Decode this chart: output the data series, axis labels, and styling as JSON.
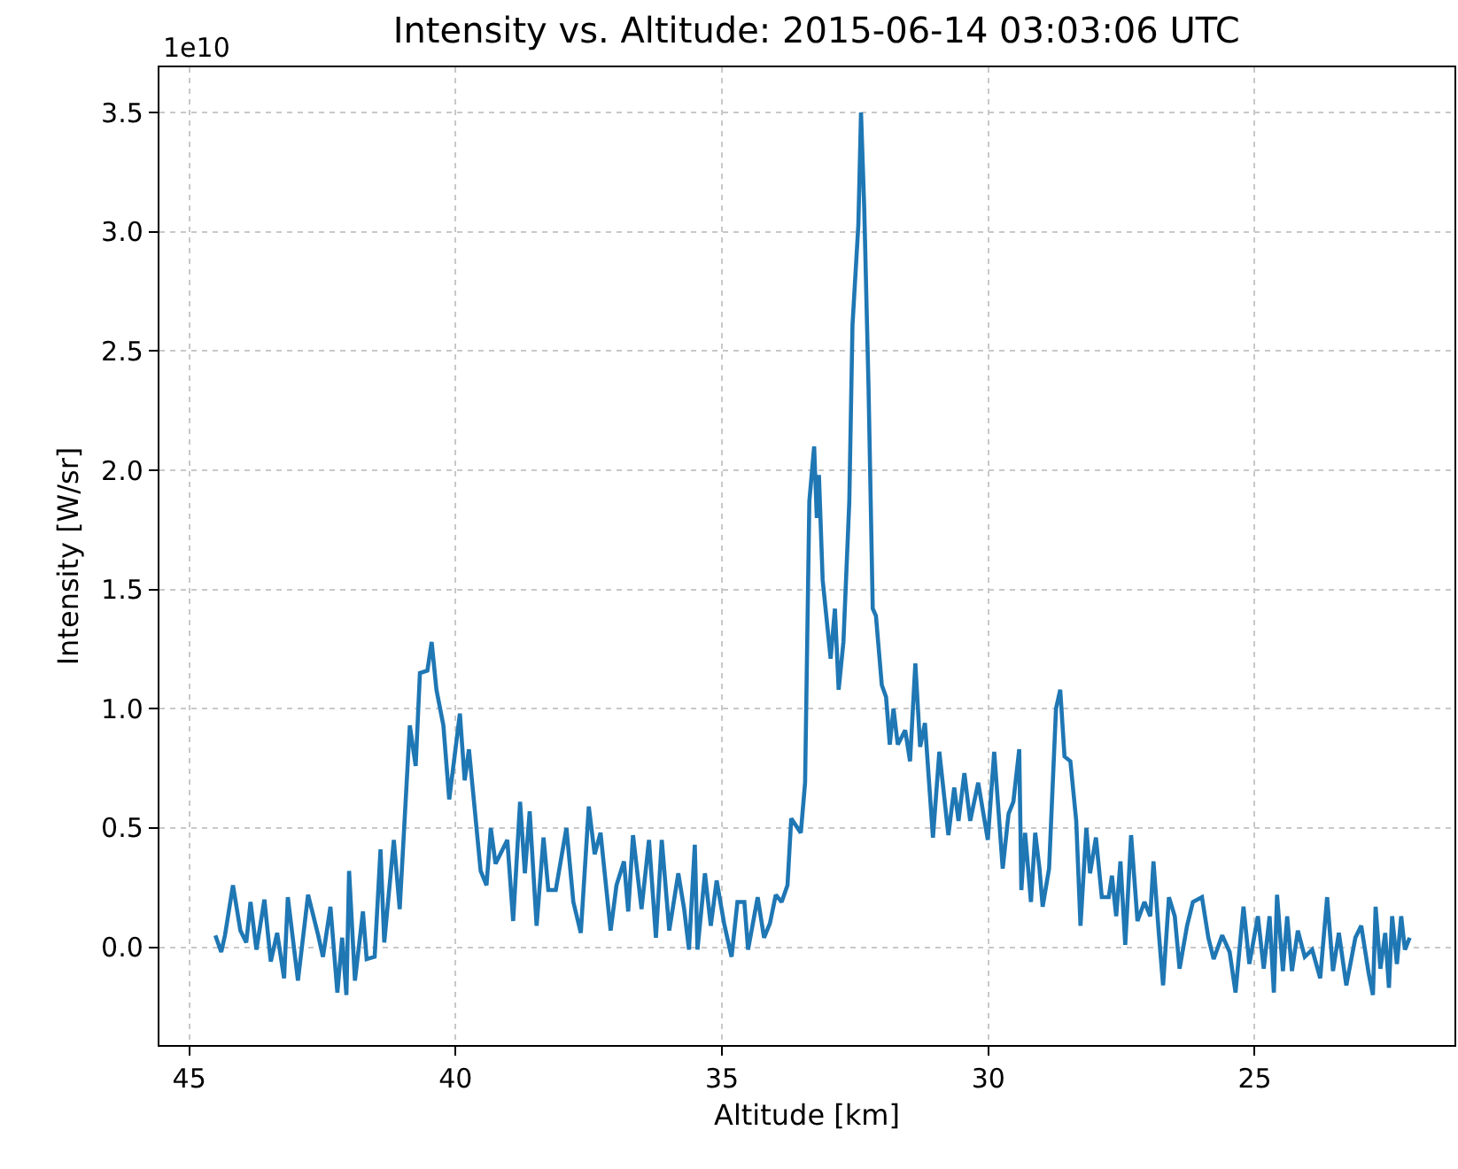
{
  "chart_data": {
    "type": "line",
    "title": "Intensity vs. Altitude: 2015-06-14 03:03:06 UTC",
    "xlabel": "Altitude [km]",
    "ylabel": "Intensity [W/sr]",
    "annotations": [
      "1e10"
    ],
    "x": [
      44.51,
      44.4,
      44.33,
      44.18,
      44.04,
      43.93,
      43.85,
      43.74,
      43.59,
      43.47,
      43.35,
      43.22,
      43.15,
      42.96,
      42.77,
      42.58,
      42.49,
      42.35,
      42.22,
      42.13,
      42.05,
      42.0,
      41.89,
      41.74,
      41.67,
      41.52,
      41.41,
      41.34,
      41.16,
      41.05,
      40.86,
      40.75,
      40.67,
      40.53,
      40.45,
      40.36,
      40.23,
      40.12,
      39.92,
      39.83,
      39.75,
      39.53,
      39.42,
      39.34,
      39.25,
      39.03,
      38.92,
      38.79,
      38.7,
      38.61,
      38.48,
      38.35,
      38.26,
      38.12,
      37.92,
      37.79,
      37.65,
      37.5,
      37.39,
      37.28,
      37.09,
      36.98,
      36.84,
      36.76,
      36.67,
      36.51,
      36.37,
      36.24,
      36.13,
      35.99,
      35.82,
      35.71,
      35.62,
      35.51,
      35.46,
      35.32,
      35.21,
      35.1,
      34.96,
      34.82,
      34.71,
      34.58,
      34.51,
      34.33,
      34.21,
      34.1,
      33.99,
      33.88,
      33.77,
      33.7,
      33.52,
      33.44,
      33.36,
      33.27,
      33.22,
      33.18,
      33.11,
      32.96,
      32.88,
      32.81,
      32.72,
      32.61,
      32.55,
      32.44,
      32.39,
      32.33,
      32.25,
      32.17,
      32.11,
      32.0,
      31.92,
      31.85,
      31.78,
      31.7,
      31.56,
      31.47,
      31.37,
      31.28,
      31.19,
      31.04,
      30.92,
      30.75,
      30.64,
      30.56,
      30.45,
      30.34,
      30.19,
      30.01,
      29.89,
      29.73,
      29.62,
      29.53,
      29.42,
      29.38,
      29.31,
      29.2,
      29.12,
      29.04,
      28.98,
      28.86,
      28.73,
      28.65,
      28.57,
      28.46,
      28.35,
      28.27,
      28.16,
      28.09,
      27.98,
      27.87,
      27.74,
      27.68,
      27.6,
      27.52,
      27.43,
      27.32,
      27.2,
      27.07,
      26.96,
      26.9,
      26.8,
      26.72,
      26.61,
      26.5,
      26.41,
      26.27,
      26.16,
      25.99,
      25.87,
      25.77,
      25.61,
      25.47,
      25.36,
      25.21,
      25.1,
      24.94,
      24.83,
      24.72,
      24.64,
      24.58,
      24.47,
      24.39,
      24.3,
      24.19,
      24.06,
      23.92,
      23.77,
      23.64,
      23.53,
      23.42,
      23.28,
      23.11,
      23.0,
      22.86,
      22.78,
      22.73,
      22.64,
      22.55,
      22.48,
      22.42,
      22.33,
      22.25,
      22.18,
      22.09
    ],
    "series": [
      {
        "color": "#1f77b4",
        "values": [
          0.05,
          -0.02,
          0.05,
          0.26,
          0.07,
          0.02,
          0.19,
          -0.01,
          0.2,
          -0.06,
          0.06,
          -0.13,
          0.21,
          -0.14,
          0.22,
          0.05,
          -0.04,
          0.17,
          -0.19,
          0.04,
          -0.2,
          0.32,
          -0.14,
          0.15,
          -0.05,
          -0.04,
          0.41,
          0.02,
          0.45,
          0.16,
          0.93,
          0.76,
          1.15,
          1.16,
          1.28,
          1.08,
          0.93,
          0.62,
          0.98,
          0.7,
          0.83,
          0.32,
          0.26,
          0.5,
          0.35,
          0.45,
          0.11,
          0.61,
          0.31,
          0.57,
          0.09,
          0.46,
          0.24,
          0.24,
          0.5,
          0.19,
          0.06,
          0.59,
          0.39,
          0.48,
          0.07,
          0.26,
          0.36,
          0.15,
          0.47,
          0.16,
          0.45,
          0.04,
          0.45,
          0.07,
          0.31,
          0.16,
          -0.01,
          0.43,
          -0.01,
          0.31,
          0.09,
          0.28,
          0.1,
          -0.04,
          0.19,
          0.19,
          -0.01,
          0.21,
          0.04,
          0.1,
          0.22,
          0.19,
          0.26,
          0.54,
          0.48,
          0.69,
          1.87,
          2.1,
          1.8,
          1.98,
          1.54,
          1.21,
          1.42,
          1.08,
          1.28,
          1.87,
          2.61,
          3.03,
          3.5,
          3.1,
          2.36,
          1.42,
          1.39,
          1.1,
          1.05,
          0.85,
          1.0,
          0.85,
          0.91,
          0.78,
          1.19,
          0.84,
          0.94,
          0.46,
          0.82,
          0.47,
          0.67,
          0.53,
          0.73,
          0.53,
          0.69,
          0.45,
          0.82,
          0.33,
          0.56,
          0.61,
          0.83,
          0.24,
          0.48,
          0.19,
          0.48,
          0.33,
          0.17,
          0.33,
          1.0,
          1.08,
          0.8,
          0.78,
          0.53,
          0.09,
          0.5,
          0.31,
          0.46,
          0.21,
          0.21,
          0.3,
          0.13,
          0.36,
          0.01,
          0.47,
          0.11,
          0.19,
          0.13,
          0.36,
          0.06,
          -0.16,
          0.21,
          0.13,
          -0.09,
          0.09,
          0.19,
          0.21,
          0.04,
          -0.05,
          0.05,
          -0.02,
          -0.19,
          0.17,
          -0.07,
          0.13,
          -0.09,
          0.13,
          -0.19,
          0.22,
          -0.1,
          0.13,
          -0.1,
          0.07,
          -0.04,
          -0.01,
          -0.13,
          0.21,
          -0.1,
          0.06,
          -0.16,
          0.04,
          0.09,
          -0.11,
          -0.2,
          0.17,
          -0.09,
          0.06,
          -0.17,
          0.13,
          -0.07,
          0.13,
          -0.01,
          0.04
        ]
      }
    ],
    "xlim": [
      45.56,
      21.25
    ],
    "xticks": [
      45,
      40,
      35,
      30,
      25
    ],
    "ylim": [
      -0.41,
      3.69
    ],
    "yticks": [
      {
        "value": 0,
        "label": "0.0"
      },
      {
        "value": 0.5,
        "label": "0.5"
      },
      {
        "value": 1,
        "label": "1.0"
      },
      {
        "value": 1.5,
        "label": "1.5"
      },
      {
        "value": 2,
        "label": "2.0"
      },
      {
        "value": 2.5,
        "label": "2.5"
      },
      {
        "value": 3,
        "label": "3.0"
      },
      {
        "value": 3.5,
        "label": "3.5"
      }
    ],
    "grid": true,
    "marker": "none",
    "line_style": "solid"
  }
}
